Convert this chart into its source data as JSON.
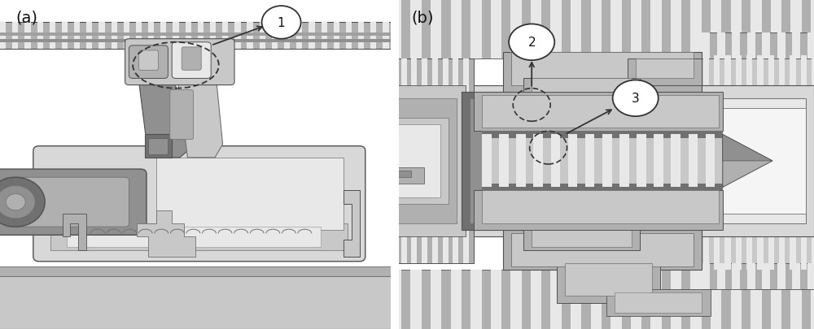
{
  "figsize": [
    10.0,
    4.06
  ],
  "dpi": 100,
  "bg_color": "#ffffff",
  "panel_a_label": "(a)",
  "panel_b_label": "(b)",
  "ann1_label": "1",
  "ann2_label": "2",
  "ann3_label": "3",
  "colors": {
    "white": "#ffffff",
    "bg": "#f0f0f0",
    "light": "#e8e8e8",
    "mid_light": "#d8d8d8",
    "mid": "#c8c8c8",
    "mid_dark": "#b0b0b0",
    "dark": "#909090",
    "darker": "#707070",
    "darkest": "#505050",
    "near_black": "#333333",
    "black": "#111111",
    "very_light": "#f5f5f5",
    "shadow": "#a0a0a0"
  }
}
